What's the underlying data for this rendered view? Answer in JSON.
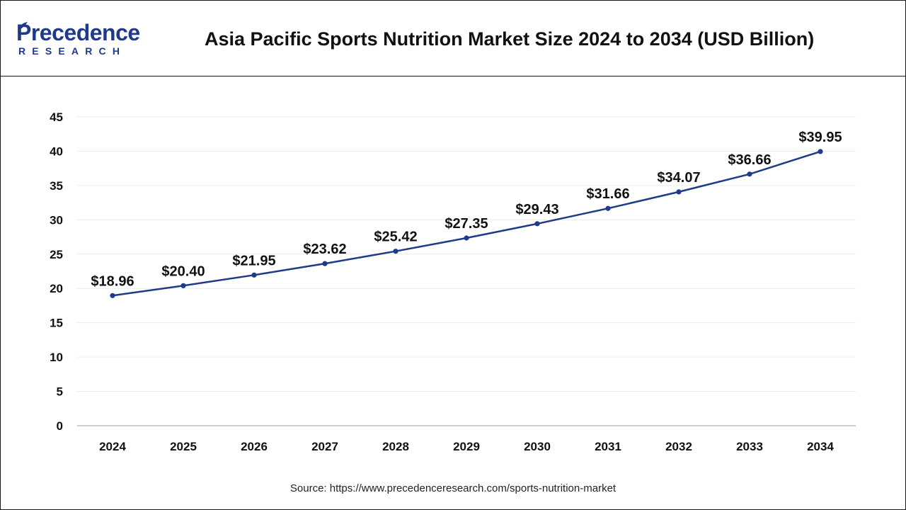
{
  "brand": {
    "name_main": "Precedence",
    "name_sub": "RESEARCH",
    "color": "#1f3a8a"
  },
  "chart_data": {
    "type": "line",
    "title": "Asia Pacific Sports Nutrition Market Size 2024 to 2034 (USD Billion)",
    "xlabel": "",
    "ylabel": "",
    "categories": [
      "2024",
      "2025",
      "2026",
      "2027",
      "2028",
      "2029",
      "2030",
      "2031",
      "2032",
      "2033",
      "2034"
    ],
    "series": [
      {
        "values": [
          18.96,
          20.4,
          21.95,
          23.62,
          25.42,
          27.35,
          29.43,
          31.66,
          34.07,
          36.66,
          39.95
        ],
        "labels": [
          "$18.96",
          "$20.40",
          "$21.95",
          "$23.62",
          "$25.42",
          "$27.35",
          "$29.43",
          "$31.66",
          "$34.07",
          "$36.66",
          "$39.95"
        ],
        "color": "#1f3a8a"
      }
    ],
    "ylim": [
      0,
      45
    ],
    "yticks": [
      0,
      5,
      10,
      15,
      20,
      25,
      30,
      35,
      40,
      45
    ],
    "grid": true,
    "legend": "none"
  },
  "source": "Source: https://www.precedenceresearch.com/sports-nutrition-market"
}
